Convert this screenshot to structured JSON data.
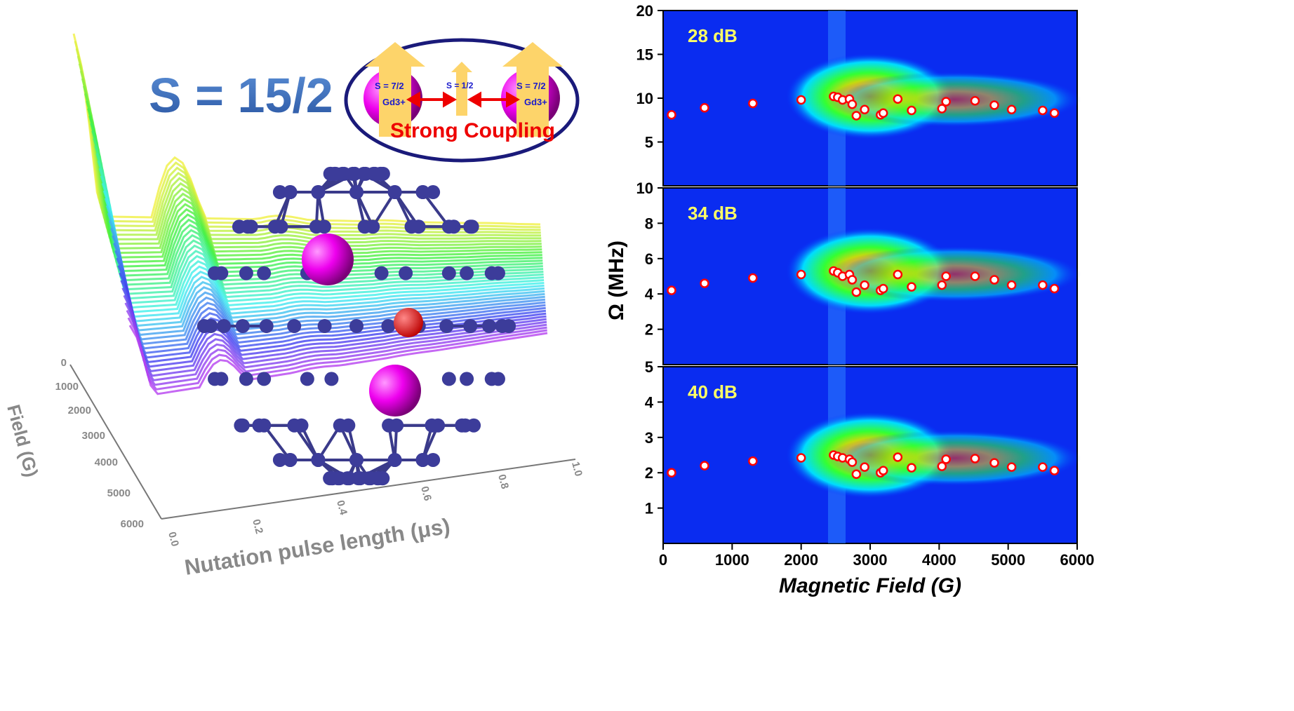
{
  "left_figure": {
    "title": "S = 15/2",
    "inset": {
      "left_spin": "S = 7/2",
      "left_ion": "Gd3+",
      "center_spin": "S = 1/2",
      "right_spin": "S = 7/2",
      "right_ion": "Gd3+",
      "caption": "Strong Coupling"
    },
    "field_axis": {
      "label": "Field (G)",
      "ticks": [
        "0",
        "1000",
        "2000",
        "3000",
        "4000",
        "5000",
        "6000"
      ]
    },
    "time_axis": {
      "label": "Nutation pulse length (μs)",
      "ticks": [
        "0.0",
        "0.2",
        "0.4",
        "0.6",
        "0.8",
        "1.0"
      ]
    }
  },
  "chart_data": {
    "type": "heatmap",
    "xlabel": "Magnetic Field (G)",
    "ylabel": "Ω (MHz)",
    "xlim": [
      0,
      6000
    ],
    "xticks": [
      "0",
      "1000",
      "2000",
      "3000",
      "4000",
      "5000",
      "6000"
    ],
    "x": [
      122,
      600,
      1300,
      2000,
      2470,
      2530,
      2600,
      2700,
      2740,
      2800,
      2920,
      3150,
      3190,
      3400,
      3600,
      4040,
      4100,
      4520,
      4800,
      5050,
      5500,
      5670
    ],
    "panels": [
      {
        "label": "28 dB",
        "ylim": [
          0,
          20
        ],
        "yticks": [
          "5",
          "10",
          "15",
          "20"
        ],
        "values": [
          8.1,
          8.9,
          9.4,
          9.8,
          10.2,
          10.1,
          9.8,
          9.9,
          9.3,
          8.0,
          8.7,
          8.1,
          8.3,
          9.9,
          8.6,
          8.8,
          9.6,
          9.7,
          9.2,
          8.7,
          8.6,
          8.3
        ]
      },
      {
        "label": "34 dB",
        "ylim": [
          0,
          10
        ],
        "yticks": [
          "2",
          "4",
          "6",
          "8",
          "10"
        ],
        "values": [
          4.2,
          4.6,
          4.9,
          5.1,
          5.3,
          5.2,
          5.0,
          5.1,
          4.8,
          4.1,
          4.5,
          4.2,
          4.3,
          5.1,
          4.4,
          4.5,
          5.0,
          5.0,
          4.8,
          4.5,
          4.5,
          4.3
        ]
      },
      {
        "label": "40 dB",
        "ylim": [
          0,
          5
        ],
        "yticks": [
          "1",
          "2",
          "3",
          "4",
          "5"
        ],
        "values": [
          2.0,
          2.2,
          2.33,
          2.42,
          2.5,
          2.46,
          2.42,
          2.38,
          2.3,
          1.96,
          2.16,
          2.0,
          2.06,
          2.44,
          2.14,
          2.18,
          2.38,
          2.4,
          2.28,
          2.16,
          2.16,
          2.06
        ]
      }
    ]
  },
  "colors": {
    "marker_edge": "#ff0000",
    "background_map": "#0022ee",
    "label_yellow": "#ffff66",
    "inset_border": "#1a1a7a"
  }
}
